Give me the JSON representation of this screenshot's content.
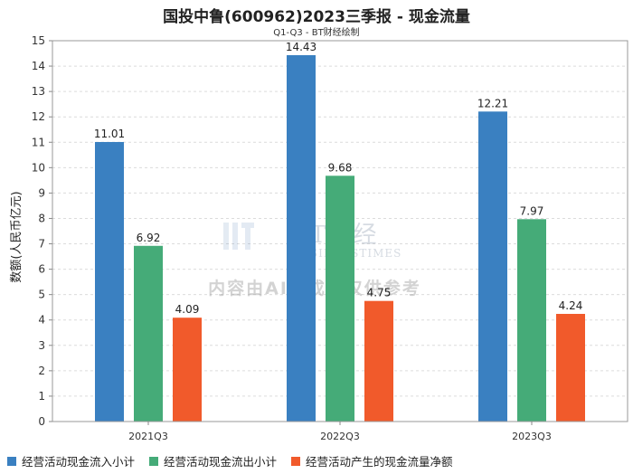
{
  "chart_data": {
    "type": "bar",
    "title": "国投中鲁(600962)2023三季报 - 现金流量",
    "subtitle": "Q1-Q3 - BT财经绘制",
    "xlabel": "",
    "ylabel": "数额(人民币亿元)",
    "ylim": [
      0,
      15
    ],
    "yticks": [
      0,
      1,
      2,
      3,
      4,
      5,
      6,
      7,
      8,
      9,
      10,
      11,
      12,
      13,
      14,
      15
    ],
    "grid": true,
    "legend_position": "bottom",
    "categories": [
      "2021Q3",
      "2022Q3",
      "2023Q3"
    ],
    "series": [
      {
        "name": "经营活动现金流入小计",
        "color": "#3a80c1",
        "values": [
          11.01,
          14.43,
          12.21
        ],
        "labels": [
          "11.01",
          "14.43",
          "12.21"
        ]
      },
      {
        "name": "经营活动现金流出小计",
        "color": "#45ab78",
        "values": [
          6.92,
          9.68,
          7.97
        ],
        "labels": [
          "6.92",
          "9.68",
          "7.97"
        ]
      },
      {
        "name": "经营活动产生的现金流量净额",
        "color": "#f15a2b",
        "values": [
          4.09,
          4.75,
          4.24
        ],
        "labels": [
          "4.09",
          "4.75",
          "4.24"
        ]
      }
    ]
  },
  "watermark": {
    "brand": "BT财经",
    "brand_en": "BUSINESSTIMES",
    "notice": "内容由AI生成，仅供参考"
  }
}
